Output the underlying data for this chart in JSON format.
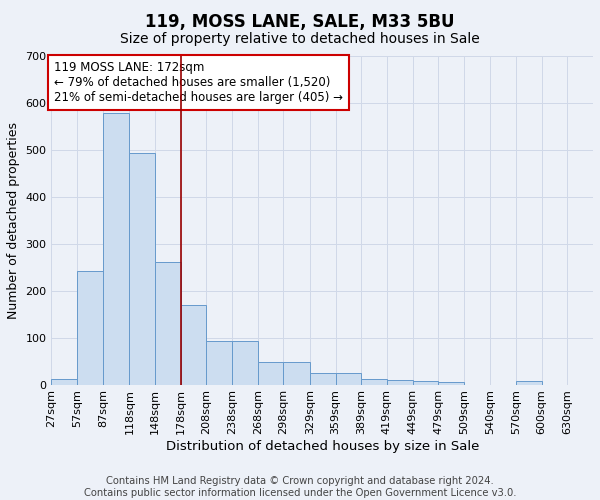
{
  "title": "119, MOSS LANE, SALE, M33 5BU",
  "subtitle": "Size of property relative to detached houses in Sale",
  "xlabel": "Distribution of detached houses by size in Sale",
  "ylabel": "Number of detached properties",
  "bar_values": [
    11,
    241,
    578,
    494,
    260,
    170,
    93,
    93,
    49,
    49,
    25,
    25,
    12,
    10,
    7,
    5,
    0,
    0,
    7,
    0,
    0
  ],
  "bin_edges": [
    27,
    57,
    87,
    118,
    148,
    178,
    208,
    238,
    268,
    298,
    329,
    359,
    389,
    419,
    449,
    479,
    509,
    540,
    570,
    600,
    630,
    660
  ],
  "tick_labels": [
    "27sqm",
    "57sqm",
    "87sqm",
    "118sqm",
    "148sqm",
    "178sqm",
    "208sqm",
    "238sqm",
    "268sqm",
    "298sqm",
    "329sqm",
    "359sqm",
    "389sqm",
    "419sqm",
    "449sqm",
    "479sqm",
    "509sqm",
    "540sqm",
    "570sqm",
    "600sqm",
    "630sqm"
  ],
  "bar_color": "#ccddf0",
  "bar_edge_color": "#6699cc",
  "grid_color": "#d0d8e8",
  "bg_color": "#edf1f8",
  "vline_x": 178,
  "vline_color": "#990000",
  "annotation_text": "119 MOSS LANE: 172sqm\n← 79% of detached houses are smaller (1,520)\n21% of semi-detached houses are larger (405) →",
  "annotation_box_color": "#ffffff",
  "annotation_border_color": "#cc0000",
  "ylim": [
    0,
    700
  ],
  "yticks": [
    0,
    100,
    200,
    300,
    400,
    500,
    600,
    700
  ],
  "footer": "Contains HM Land Registry data © Crown copyright and database right 2024.\nContains public sector information licensed under the Open Government Licence v3.0.",
  "title_fontsize": 12,
  "subtitle_fontsize": 10,
  "xlabel_fontsize": 9.5,
  "ylabel_fontsize": 9,
  "tick_fontsize": 8,
  "annotation_fontsize": 8.5
}
